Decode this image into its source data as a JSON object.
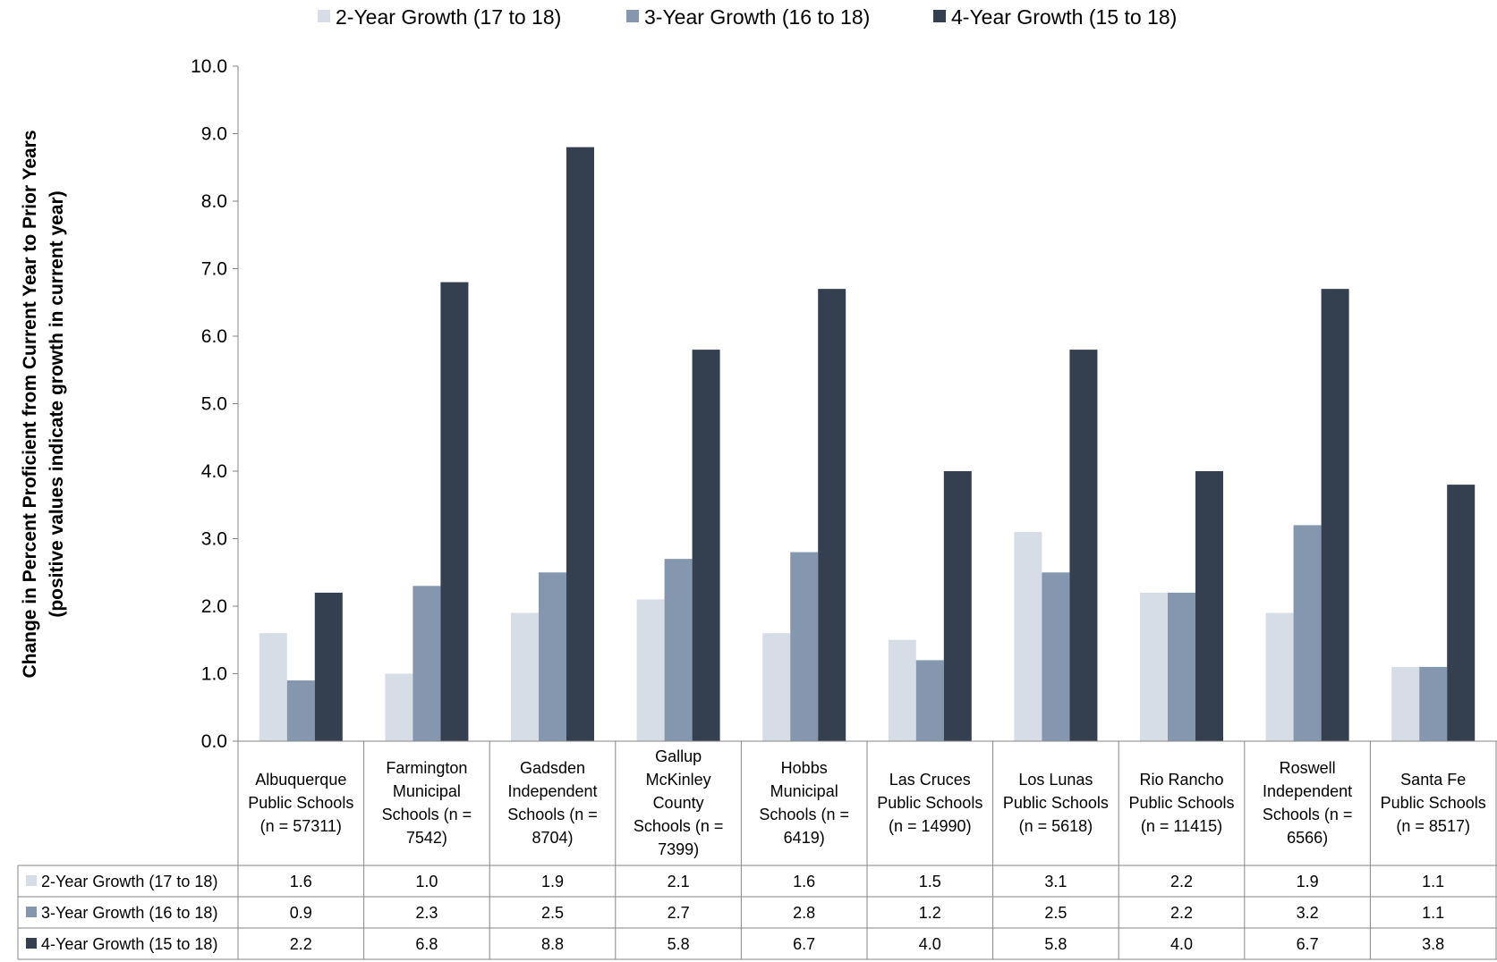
{
  "chart_data": {
    "type": "bar",
    "title": "",
    "ylabel": "Change in Percent Proficient from Current Year to Prior Years",
    "ylabel_sub": "(positive values indicate growth in current year)",
    "xlabel": "",
    "ylim": [
      0,
      10
    ],
    "yticks": [
      "0.0",
      "1.0",
      "2.0",
      "3.0",
      "4.0",
      "5.0",
      "6.0",
      "7.0",
      "8.0",
      "9.0",
      "10.0"
    ],
    "grid": false,
    "legend_position": "top",
    "data_table": true,
    "categories": [
      [
        "Albuquerque",
        "Public Schools",
        "(n = 57311)"
      ],
      [
        "Farmington",
        "Municipal",
        "Schools (n =",
        "7542)"
      ],
      [
        "Gadsden",
        "Independent",
        "Schools (n =",
        "8704)"
      ],
      [
        "Gallup",
        "McKinley",
        "County",
        "Schools (n =",
        "7399)"
      ],
      [
        "Hobbs",
        "Municipal",
        "Schools (n =",
        "6419)"
      ],
      [
        "Las Cruces",
        "Public Schools",
        "(n = 14990)"
      ],
      [
        "Los Lunas",
        "Public Schools",
        "(n = 5618)"
      ],
      [
        "Rio Rancho",
        "Public Schools",
        "(n = 11415)"
      ],
      [
        "Roswell",
        "Independent",
        "Schools (n =",
        "6566)"
      ],
      [
        "Santa Fe",
        "Public Schools",
        "(n = 8517)"
      ]
    ],
    "series": [
      {
        "name": "2-Year Growth (17 to 18)",
        "color": "#d6dde6",
        "values": [
          1.6,
          1.0,
          1.9,
          2.1,
          1.6,
          1.5,
          3.1,
          2.2,
          1.9,
          1.1
        ],
        "labels": [
          "1.6",
          "1.0",
          "1.9",
          "2.1",
          "1.6",
          "1.5",
          "3.1",
          "2.2",
          "1.9",
          "1.1"
        ]
      },
      {
        "name": "3-Year Growth (16 to 18)",
        "color": "#8597af",
        "values": [
          0.9,
          2.3,
          2.5,
          2.7,
          2.8,
          1.2,
          2.5,
          2.2,
          3.2,
          1.1
        ],
        "labels": [
          "0.9",
          "2.3",
          "2.5",
          "2.7",
          "2.8",
          "1.2",
          "2.5",
          "2.2",
          "3.2",
          "1.1"
        ]
      },
      {
        "name": "4-Year Growth (15 to 18)",
        "color": "#343f4f",
        "values": [
          2.2,
          6.8,
          8.8,
          5.8,
          6.7,
          4.0,
          5.8,
          4.0,
          6.7,
          3.8
        ],
        "labels": [
          "2.2",
          "6.8",
          "8.8",
          "5.8",
          "6.7",
          "4.0",
          "5.8",
          "4.0",
          "6.7",
          "3.8"
        ]
      }
    ]
  }
}
